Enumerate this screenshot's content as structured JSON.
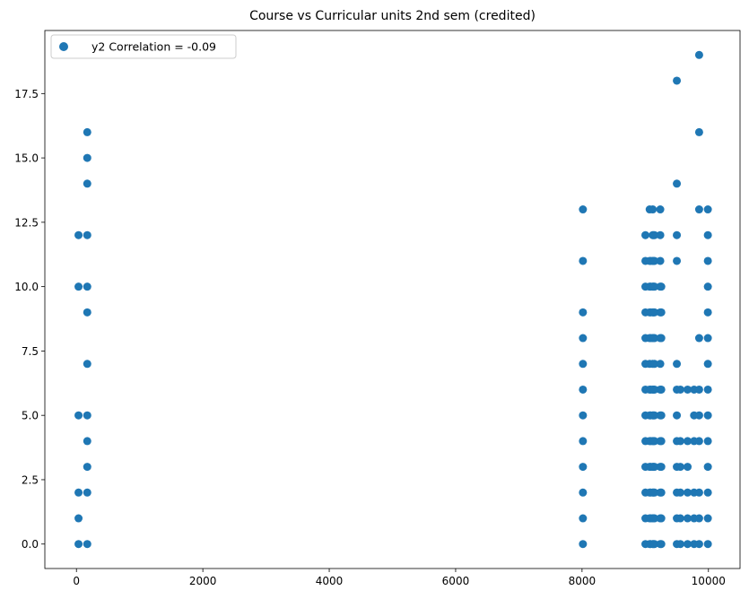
{
  "chart_data": {
    "type": "scatter",
    "title": "Course vs Curricular units 2nd sem (credited)",
    "xlabel": "",
    "ylabel": "",
    "xlim": [
      -500,
      10500
    ],
    "ylim": [
      -0.95,
      19.95
    ],
    "xticks": [
      0,
      2000,
      4000,
      6000,
      8000,
      10000
    ],
    "xtick_labels": [
      "0",
      "2000",
      "4000",
      "6000",
      "8000",
      "10000"
    ],
    "yticks": [
      0,
      2.5,
      5,
      7.5,
      10,
      12.5,
      15,
      17.5
    ],
    "ytick_labels": [
      "0.0",
      "2.5",
      "5.0",
      "7.5",
      "10.0",
      "12.5",
      "15.0",
      "17.5"
    ],
    "grid": false,
    "legend_position": "top-left",
    "marker_color": "#1f77b4",
    "series": [
      {
        "name": "y2 Correlation = -0.09",
        "points": [
          [
            33,
            0
          ],
          [
            33,
            1
          ],
          [
            33,
            2
          ],
          [
            33,
            5
          ],
          [
            33,
            10
          ],
          [
            33,
            12
          ],
          [
            171,
            0
          ],
          [
            171,
            2
          ],
          [
            171,
            3
          ],
          [
            171,
            4
          ],
          [
            171,
            5
          ],
          [
            171,
            7
          ],
          [
            171,
            9
          ],
          [
            171,
            10
          ],
          [
            171,
            12
          ],
          [
            171,
            14
          ],
          [
            171,
            15
          ],
          [
            171,
            16
          ],
          [
            8014,
            0
          ],
          [
            8014,
            1
          ],
          [
            8014,
            2
          ],
          [
            8014,
            3
          ],
          [
            8014,
            4
          ],
          [
            8014,
            5
          ],
          [
            8014,
            6
          ],
          [
            8014,
            7
          ],
          [
            8014,
            8
          ],
          [
            8014,
            9
          ],
          [
            8014,
            11
          ],
          [
            8014,
            13
          ],
          [
            9003,
            0
          ],
          [
            9003,
            1
          ],
          [
            9003,
            2
          ],
          [
            9003,
            3
          ],
          [
            9003,
            4
          ],
          [
            9003,
            5
          ],
          [
            9003,
            6
          ],
          [
            9003,
            7
          ],
          [
            9003,
            8
          ],
          [
            9003,
            9
          ],
          [
            9003,
            10
          ],
          [
            9003,
            11
          ],
          [
            9003,
            12
          ],
          [
            9070,
            0
          ],
          [
            9070,
            1
          ],
          [
            9070,
            2
          ],
          [
            9070,
            3
          ],
          [
            9070,
            4
          ],
          [
            9070,
            5
          ],
          [
            9070,
            6
          ],
          [
            9070,
            7
          ],
          [
            9070,
            8
          ],
          [
            9070,
            9
          ],
          [
            9070,
            10
          ],
          [
            9070,
            11
          ],
          [
            9070,
            13
          ],
          [
            9085,
            0
          ],
          [
            9085,
            1
          ],
          [
            9085,
            2
          ],
          [
            9085,
            3
          ],
          [
            9085,
            4
          ],
          [
            9085,
            5
          ],
          [
            9085,
            6
          ],
          [
            9085,
            8
          ],
          [
            9085,
            9
          ],
          [
            9085,
            10
          ],
          [
            9085,
            11
          ],
          [
            9119,
            0
          ],
          [
            9119,
            1
          ],
          [
            9119,
            2
          ],
          [
            9119,
            3
          ],
          [
            9119,
            4
          ],
          [
            9119,
            5
          ],
          [
            9119,
            6
          ],
          [
            9119,
            7
          ],
          [
            9119,
            8
          ],
          [
            9119,
            9
          ],
          [
            9119,
            10
          ],
          [
            9119,
            11
          ],
          [
            9119,
            12
          ],
          [
            9119,
            13
          ],
          [
            9130,
            0
          ],
          [
            9130,
            1
          ],
          [
            9130,
            2
          ],
          [
            9130,
            3
          ],
          [
            9130,
            4
          ],
          [
            9130,
            5
          ],
          [
            9130,
            6
          ],
          [
            9130,
            8
          ],
          [
            9130,
            9
          ],
          [
            9130,
            10
          ],
          [
            9130,
            11
          ],
          [
            9130,
            12
          ],
          [
            9147,
            0
          ],
          [
            9147,
            1
          ],
          [
            9147,
            2
          ],
          [
            9147,
            3
          ],
          [
            9147,
            4
          ],
          [
            9147,
            5
          ],
          [
            9147,
            6
          ],
          [
            9147,
            7
          ],
          [
            9147,
            8
          ],
          [
            9147,
            9
          ],
          [
            9147,
            10
          ],
          [
            9147,
            11
          ],
          [
            9147,
            12
          ],
          [
            9238,
            0
          ],
          [
            9238,
            1
          ],
          [
            9238,
            2
          ],
          [
            9238,
            3
          ],
          [
            9238,
            4
          ],
          [
            9238,
            5
          ],
          [
            9238,
            6
          ],
          [
            9238,
            7
          ],
          [
            9238,
            8
          ],
          [
            9238,
            9
          ],
          [
            9238,
            10
          ],
          [
            9238,
            11
          ],
          [
            9238,
            12
          ],
          [
            9238,
            13
          ],
          [
            9254,
            0
          ],
          [
            9254,
            1
          ],
          [
            9254,
            2
          ],
          [
            9254,
            3
          ],
          [
            9254,
            4
          ],
          [
            9254,
            5
          ],
          [
            9254,
            6
          ],
          [
            9254,
            8
          ],
          [
            9254,
            9
          ],
          [
            9254,
            10
          ],
          [
            9500,
            0
          ],
          [
            9500,
            1
          ],
          [
            9500,
            2
          ],
          [
            9500,
            3
          ],
          [
            9500,
            4
          ],
          [
            9500,
            5
          ],
          [
            9500,
            6
          ],
          [
            9500,
            7
          ],
          [
            9500,
            11
          ],
          [
            9500,
            12
          ],
          [
            9500,
            14
          ],
          [
            9500,
            18
          ],
          [
            9556,
            0
          ],
          [
            9556,
            1
          ],
          [
            9556,
            2
          ],
          [
            9556,
            3
          ],
          [
            9556,
            4
          ],
          [
            9556,
            6
          ],
          [
            9670,
            0
          ],
          [
            9670,
            1
          ],
          [
            9670,
            2
          ],
          [
            9670,
            3
          ],
          [
            9670,
            4
          ],
          [
            9670,
            6
          ],
          [
            9773,
            0
          ],
          [
            9773,
            1
          ],
          [
            9773,
            2
          ],
          [
            9773,
            4
          ],
          [
            9773,
            5
          ],
          [
            9773,
            6
          ],
          [
            9853,
            0
          ],
          [
            9853,
            1
          ],
          [
            9853,
            2
          ],
          [
            9853,
            4
          ],
          [
            9853,
            5
          ],
          [
            9853,
            6
          ],
          [
            9853,
            8
          ],
          [
            9853,
            13
          ],
          [
            9853,
            16
          ],
          [
            9853,
            19
          ],
          [
            9991,
            0
          ],
          [
            9991,
            1
          ],
          [
            9991,
            2
          ],
          [
            9991,
            3
          ],
          [
            9991,
            4
          ],
          [
            9991,
            5
          ],
          [
            9991,
            6
          ],
          [
            9991,
            7
          ],
          [
            9991,
            8
          ],
          [
            9991,
            9
          ],
          [
            9991,
            10
          ],
          [
            9991,
            11
          ],
          [
            9991,
            12
          ],
          [
            9991,
            13
          ]
        ]
      }
    ]
  }
}
